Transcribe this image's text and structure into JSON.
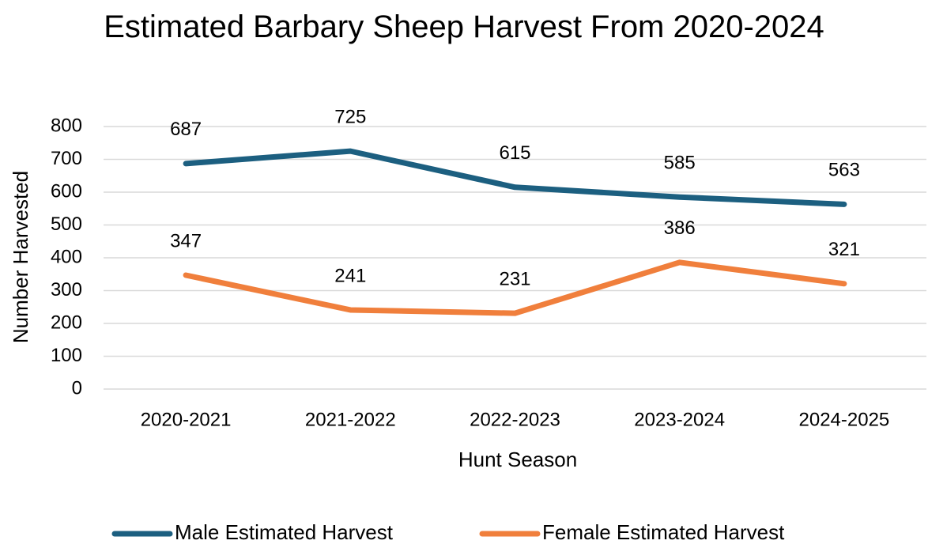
{
  "chart_data": {
    "type": "line",
    "title": "Estimated Barbary Sheep Harvest From 2020-2024",
    "x_label": "Hunt Season",
    "y_label": "Number Harvested",
    "categories": [
      "2020-2021",
      "2021-2022",
      "2022-2023",
      "2023-2024",
      "2024-2025"
    ],
    "series": [
      {
        "name": "Male Estimated Harvest",
        "color": "#1c5f80",
        "values": [
          687,
          725,
          615,
          585,
          563
        ]
      },
      {
        "name": "Female Estimated Harvest",
        "color": "#f07f3c",
        "values": [
          347,
          241,
          231,
          386,
          321
        ]
      }
    ],
    "ylim": [
      0,
      800
    ],
    "yticks": [
      0,
      100,
      200,
      300,
      400,
      500,
      600,
      700,
      800
    ],
    "grid": true,
    "legend": "bottom"
  }
}
